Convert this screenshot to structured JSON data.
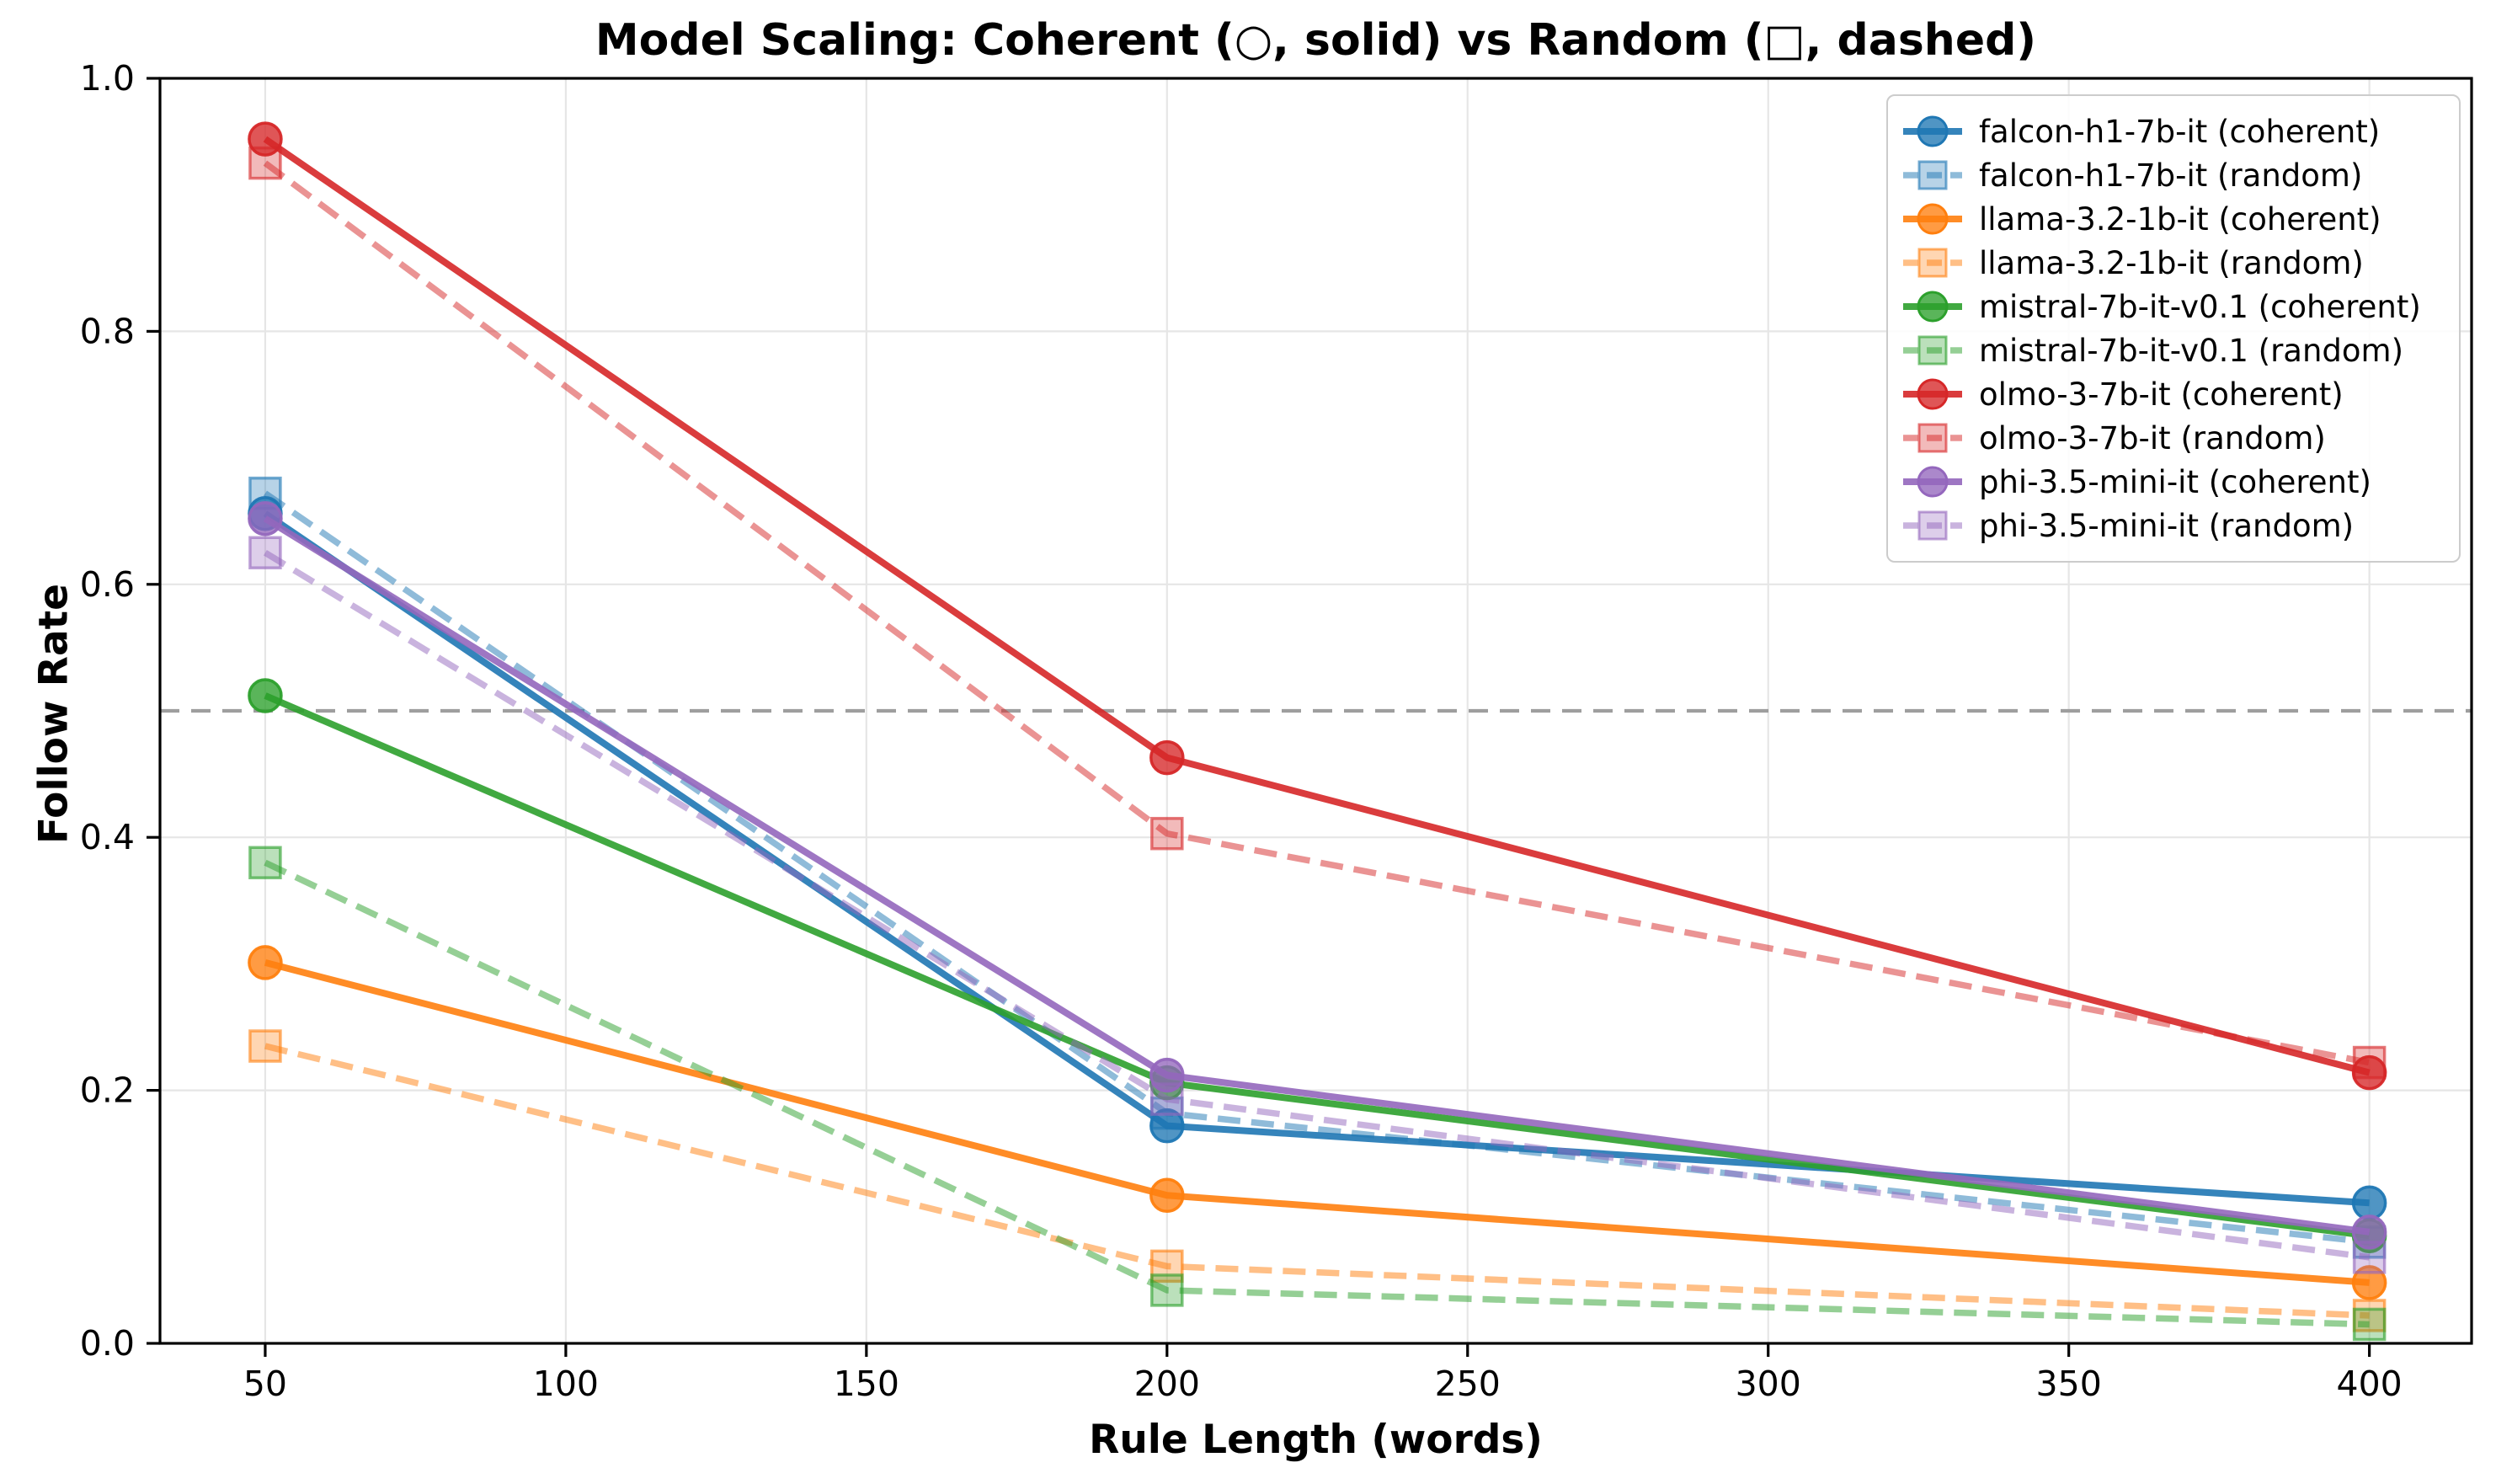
{
  "chart_data": {
    "type": "line",
    "title": "Model Scaling: Coherent (○, solid) vs Random (□, dashed)",
    "xlabel": "Rule Length (words)",
    "ylabel": "Follow Rate",
    "x": [
      50,
      200,
      400
    ],
    "xticks": [
      50,
      100,
      150,
      200,
      250,
      300,
      350,
      400
    ],
    "yticks": [
      0.0,
      0.2,
      0.4,
      0.6,
      0.8,
      1.0
    ],
    "xlim": [
      32.5,
      417
    ],
    "ylim": [
      0.0,
      1.0
    ],
    "grid": true,
    "legend_position": "upper right",
    "chance_line": {
      "y": 0.5,
      "color": "#9e9e9e",
      "style": "dashed"
    },
    "series": [
      {
        "name": "falcon-h1-7b-it",
        "condition": "coherent",
        "label": "falcon-h1-7b-it (coherent)",
        "color": "#1f77b4",
        "marker": "circle",
        "linestyle": "solid",
        "values": [
          0.656,
          0.172,
          0.111
        ]
      },
      {
        "name": "falcon-h1-7b-it",
        "condition": "random",
        "label": "falcon-h1-7b-it (random)",
        "color": "#1f77b4",
        "marker": "square",
        "linestyle": "dashed",
        "values": [
          0.672,
          0.182,
          0.08
        ]
      },
      {
        "name": "llama-3.2-1b-it",
        "condition": "coherent",
        "label": "llama-3.2-1b-it (coherent)",
        "color": "#ff7f0e",
        "marker": "circle",
        "linestyle": "solid",
        "values": [
          0.301,
          0.117,
          0.048
        ]
      },
      {
        "name": "llama-3.2-1b-it",
        "condition": "random",
        "label": "llama-3.2-1b-it (random)",
        "color": "#ff7f0e",
        "marker": "square",
        "linestyle": "dashed",
        "values": [
          0.235,
          0.061,
          0.022
        ]
      },
      {
        "name": "mistral-7b-it-v0.1",
        "condition": "coherent",
        "label": "mistral-7b-it-v0.1 (coherent)",
        "color": "#2ca02c",
        "marker": "circle",
        "linestyle": "solid",
        "values": [
          0.512,
          0.206,
          0.085
        ]
      },
      {
        "name": "mistral-7b-it-v0.1",
        "condition": "random",
        "label": "mistral-7b-it-v0.1 (random)",
        "color": "#2ca02c",
        "marker": "square",
        "linestyle": "dashed",
        "values": [
          0.38,
          0.042,
          0.015
        ]
      },
      {
        "name": "olmo-3-7b-it",
        "condition": "coherent",
        "label": "olmo-3-7b-it (coherent)",
        "color": "#d62728",
        "marker": "circle",
        "linestyle": "solid",
        "values": [
          0.952,
          0.463,
          0.214
        ]
      },
      {
        "name": "olmo-3-7b-it",
        "condition": "random",
        "label": "olmo-3-7b-it (random)",
        "color": "#d62728",
        "marker": "square",
        "linestyle": "dashed",
        "values": [
          0.933,
          0.403,
          0.222
        ]
      },
      {
        "name": "phi-3.5-mini-it",
        "condition": "coherent",
        "label": "phi-3.5-mini-it (coherent)",
        "color": "#9467bd",
        "marker": "circle",
        "linestyle": "solid",
        "values": [
          0.652,
          0.212,
          0.088
        ]
      },
      {
        "name": "phi-3.5-mini-it",
        "condition": "random",
        "label": "phi-3.5-mini-it (random)",
        "color": "#9467bd",
        "marker": "square",
        "linestyle": "dashed",
        "values": [
          0.625,
          0.193,
          0.068
        ]
      }
    ]
  }
}
